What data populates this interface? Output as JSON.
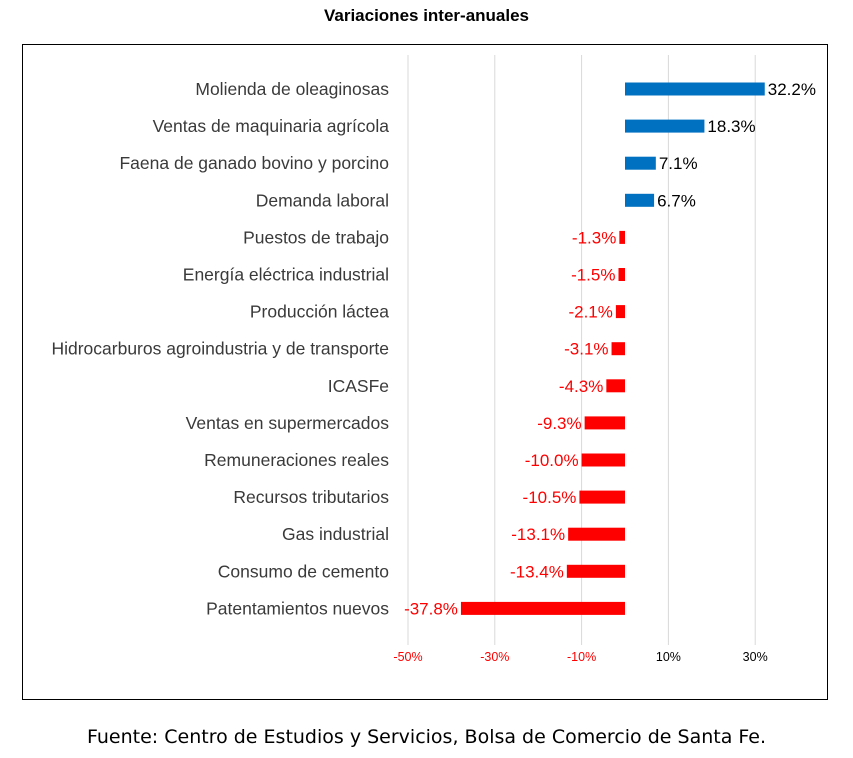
{
  "chart_data": {
    "type": "bar",
    "orientation": "horizontal",
    "title": "Variaciones inter-anuales",
    "categories": [
      "Molienda de oleaginosas",
      "Ventas de maquinaria agrícola",
      "Faena de ganado bovino y porcino",
      "Demanda laboral",
      "Puestos de trabajo",
      "Energía eléctrica industrial",
      "Producción láctea",
      "Hidrocarburos agroindustria y de transporte",
      "ICASFe",
      "Ventas en supermercados",
      "Remuneraciones reales",
      "Recursos tributarios",
      "Gas industrial",
      "Consumo de cemento",
      "Patentamientos nuevos"
    ],
    "values": [
      32.2,
      18.3,
      7.1,
      6.7,
      -1.3,
      -1.5,
      -2.1,
      -3.1,
      -4.3,
      -9.3,
      -10.0,
      -10.5,
      -13.1,
      -13.4,
      -37.8
    ],
    "data_labels": [
      "32.2%",
      "18.3%",
      "7.1%",
      "6.7%",
      "-1.3%",
      "-1.5%",
      "-2.1%",
      "-3.1%",
      "-4.3%",
      "-9.3%",
      "-10.0%",
      "-10.5%",
      "-13.1%",
      "-13.4%",
      "-37.8%"
    ],
    "xlim": [
      -50,
      40
    ],
    "x_ticks": [
      -50,
      -30,
      -10,
      10,
      30
    ],
    "x_tick_labels": [
      "-50%",
      "-30%",
      "-10%",
      "10%",
      "30%"
    ],
    "grid": "vertical",
    "legend": "none",
    "colors": {
      "positive": "#0070c0",
      "negative": "#ff0000",
      "grid": "#d9d9d9",
      "positive_label": "#000000",
      "negative_label": "#ff0000"
    }
  },
  "footer": {
    "source": "Fuente: Centro de Estudios y Servicios, Bolsa de Comercio de Santa Fe."
  }
}
